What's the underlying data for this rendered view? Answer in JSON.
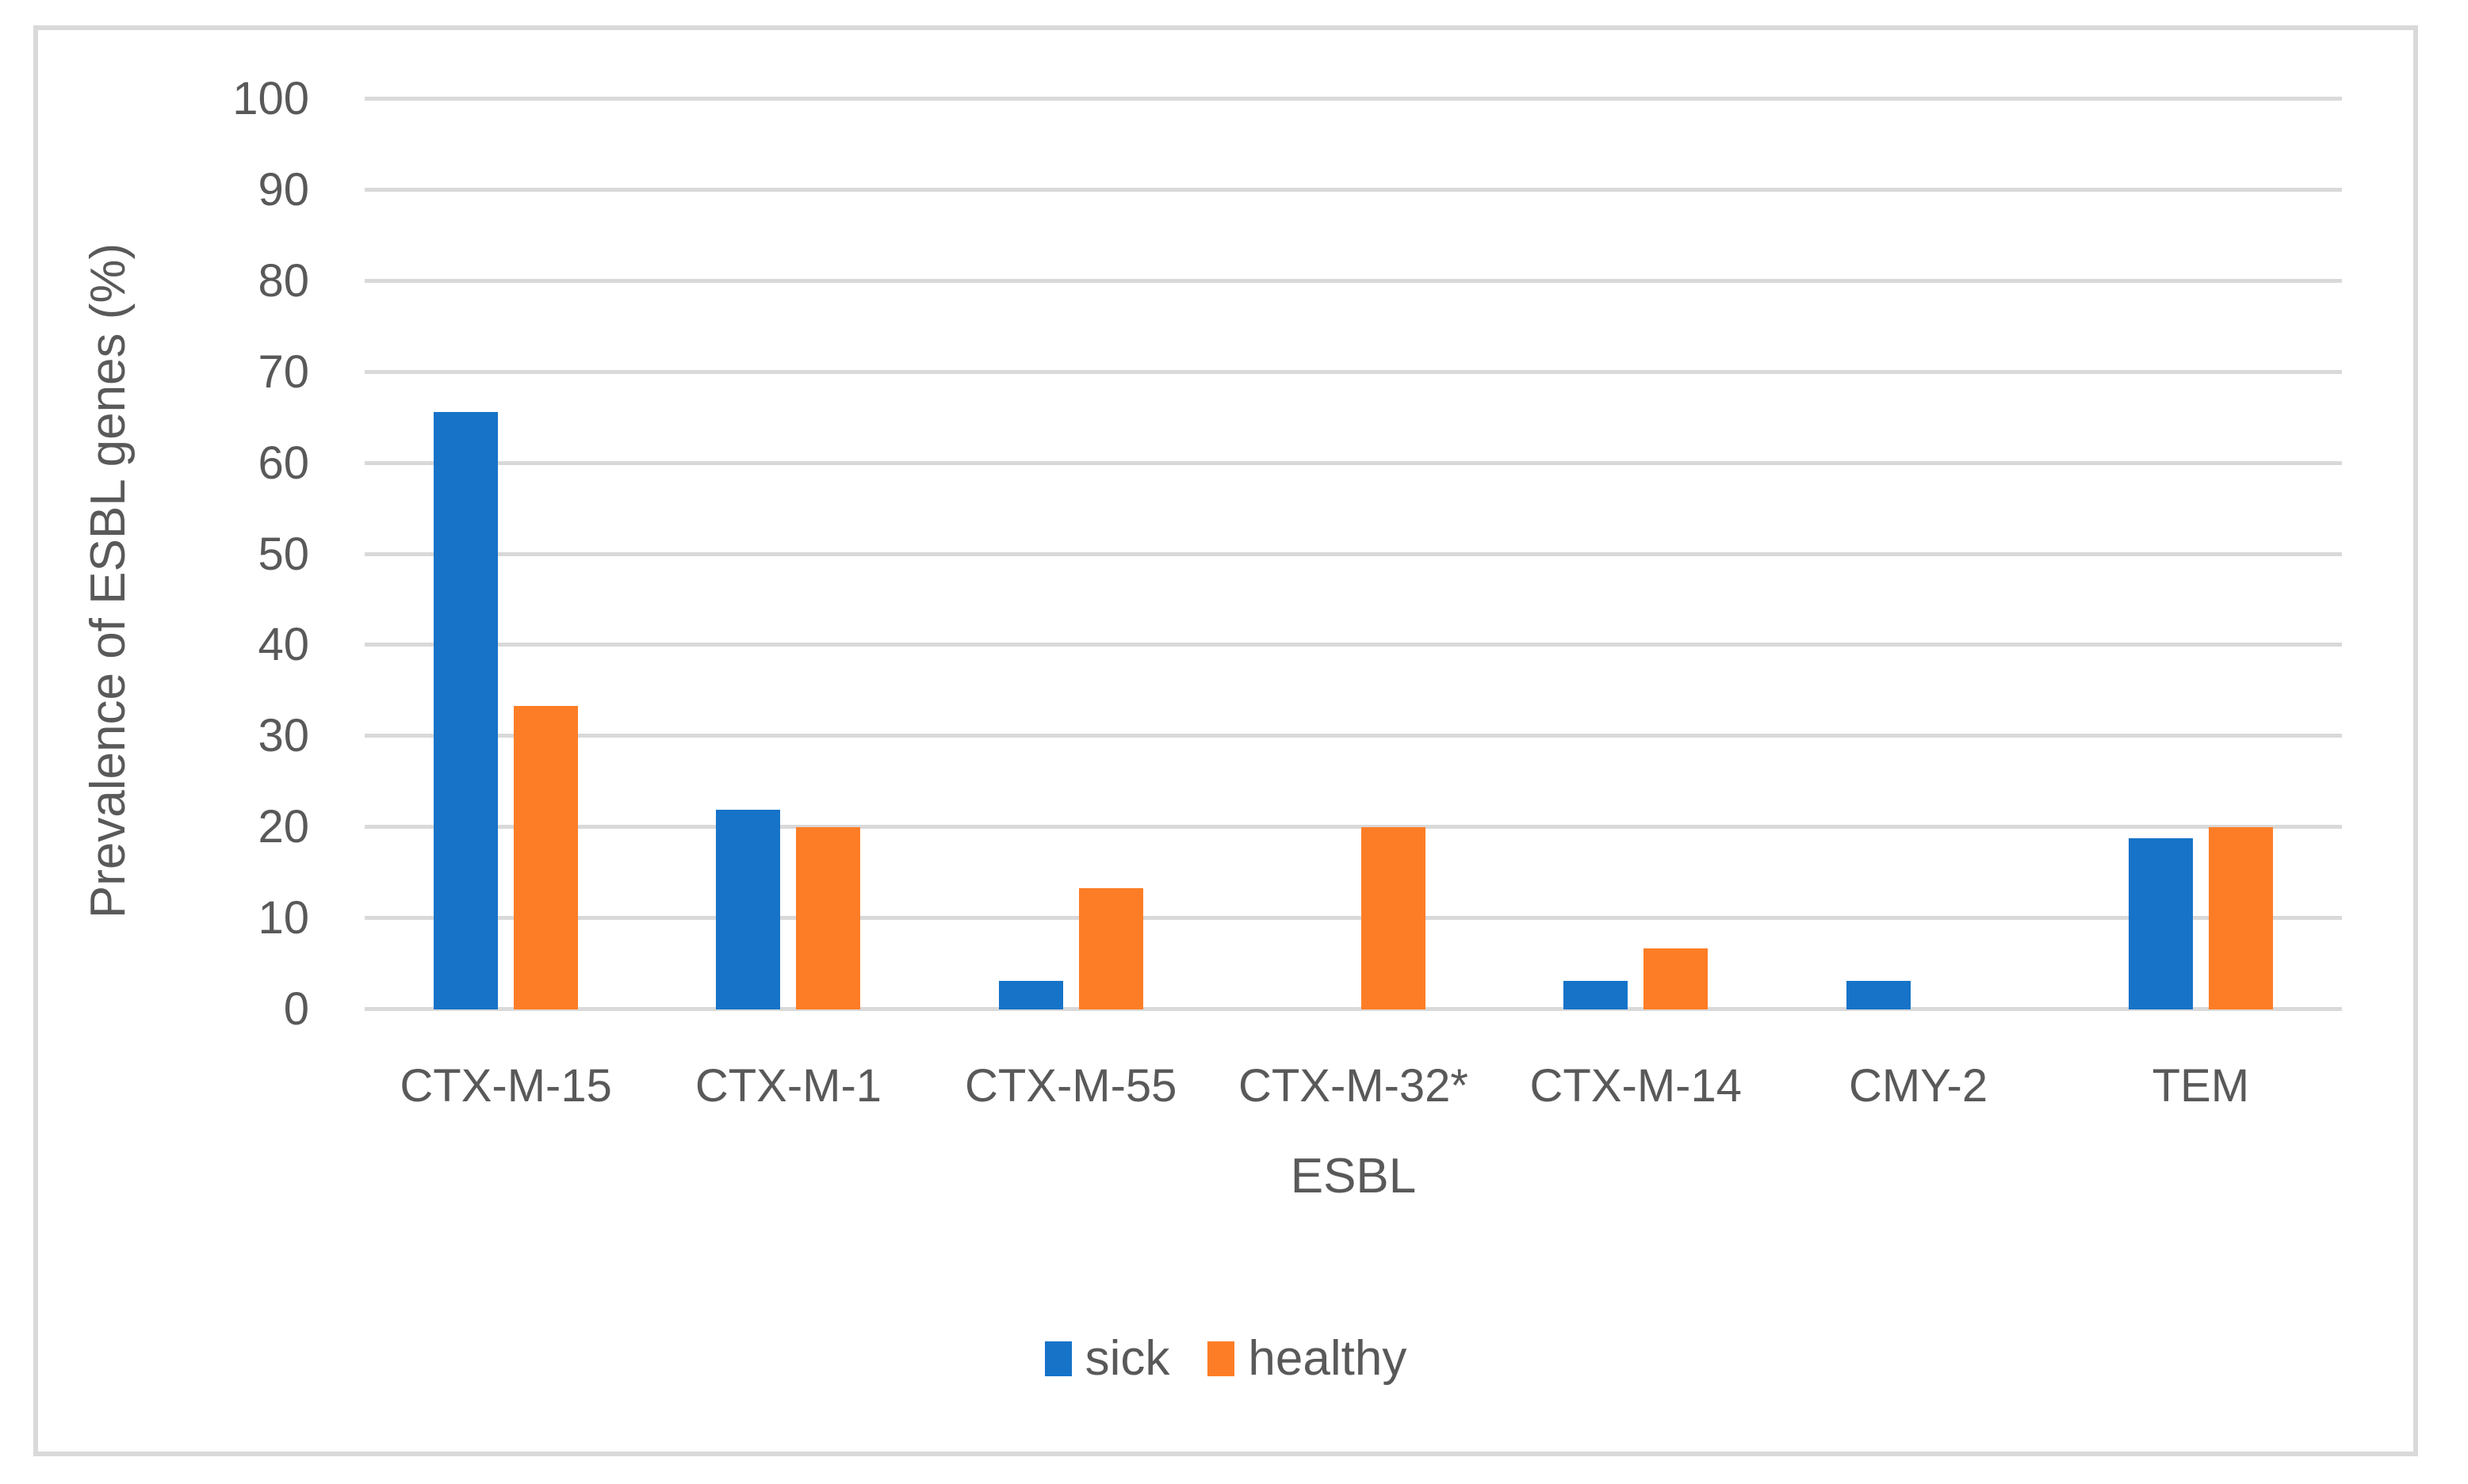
{
  "figure": {
    "background_color": "#ffffff",
    "border_color": "#d9d9d9",
    "gridline_color": "#d9d9d9",
    "text_color": "#595959"
  },
  "chart_data": {
    "type": "bar",
    "title": "",
    "categories": [
      "CTX-M-15",
      "CTX-M-1",
      "CTX-M-55",
      "CTX-M-32*",
      "CTX-M-14",
      "CMY-2",
      "TEM"
    ],
    "series": [
      {
        "name": "sick",
        "color": "#1673c8",
        "values": [
          65.6,
          21.9,
          3.1,
          0,
          3.1,
          3.1,
          18.8
        ]
      },
      {
        "name": "healthy",
        "color": "#fd7d26",
        "values": [
          33.3,
          20,
          13.3,
          20,
          6.7,
          0,
          20
        ]
      }
    ],
    "xlabel": "ESBL",
    "ylabel": "Prevalence of ESBL genes (%)",
    "ylim": [
      0,
      100
    ],
    "yticks": [
      0,
      10,
      20,
      30,
      40,
      50,
      60,
      70,
      80,
      90,
      100
    ],
    "grid": true,
    "legend_position": "bottom-center"
  }
}
